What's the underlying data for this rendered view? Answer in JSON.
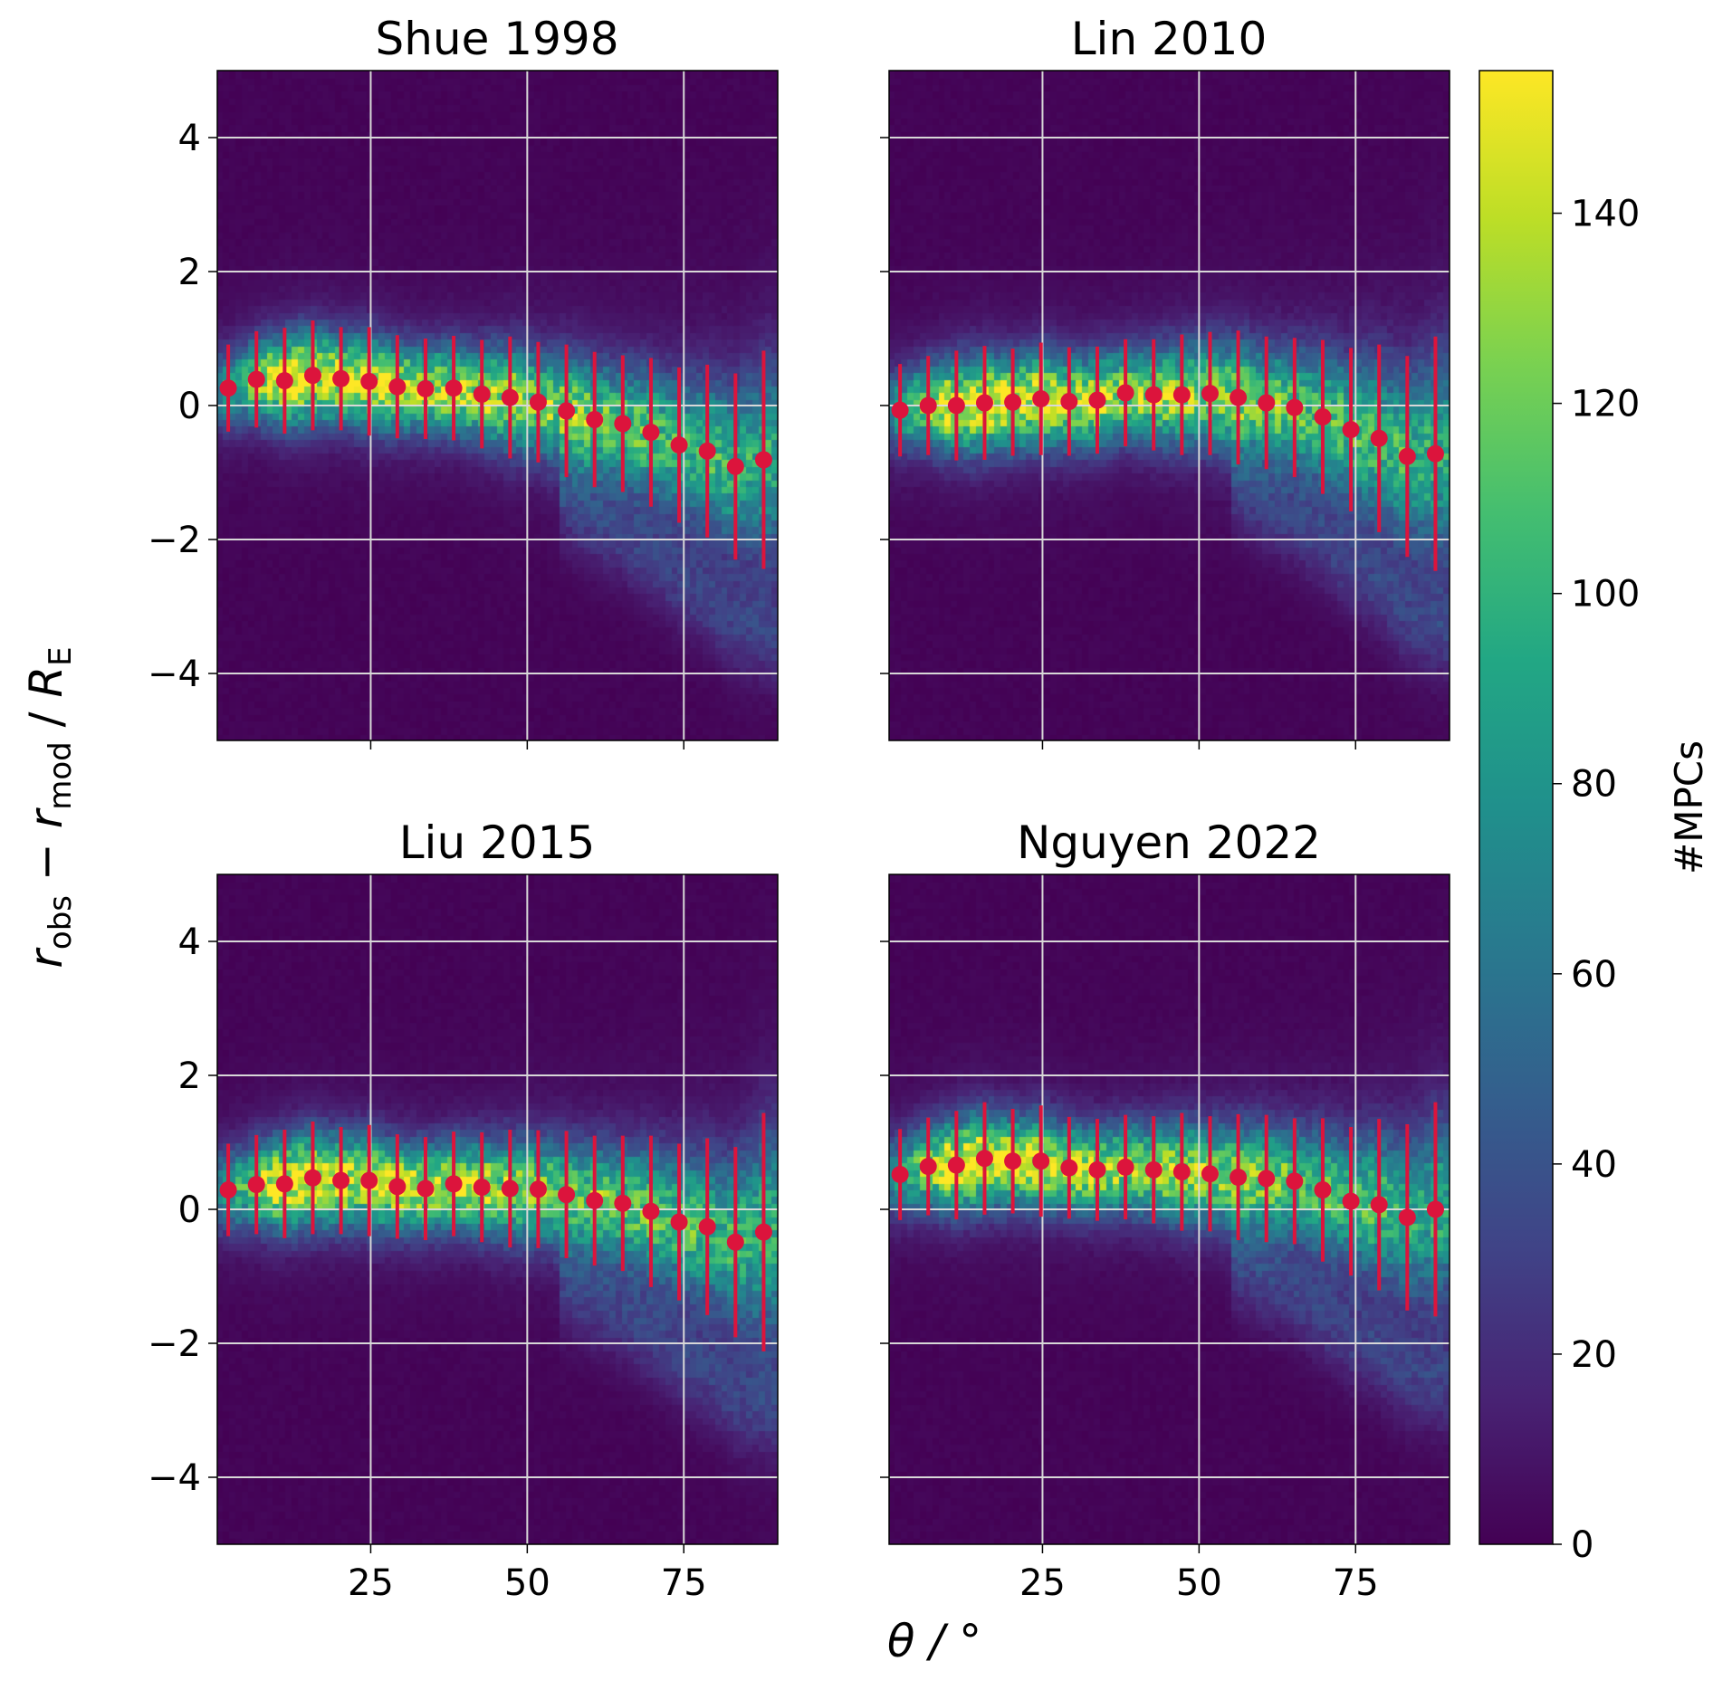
{
  "chart_data": {
    "type": "heatmap",
    "overlay_type": "scatter-errorbar",
    "ylabel": "r_obs − r_mod / R_E",
    "ylabel_parts": {
      "r1": "r",
      "sub1": "obs",
      "minus": " − ",
      "r2": "r",
      "sub2": "mod",
      "slash": " / ",
      "R": "R",
      "subR": "E"
    },
    "xlabel": "θ / °",
    "xlim": [
      0.5,
      90
    ],
    "ylim": [
      -5,
      5
    ],
    "xticks": [
      "25",
      "50",
      "75"
    ],
    "xtick_values": [
      25,
      50,
      75
    ],
    "yticks": [
      "−4",
      "−2",
      "0",
      "2",
      "4"
    ],
    "ytick_values": [
      -4,
      -2,
      0,
      2,
      4
    ],
    "grid": true,
    "marker_color": "#dc143c",
    "colormap": "viridis",
    "colorbar": {
      "label": "#MPCs",
      "range": [
        0,
        155
      ],
      "ticks": [
        "0",
        "20",
        "40",
        "60",
        "80",
        "100",
        "120",
        "140"
      ],
      "tick_values": [
        0,
        20,
        40,
        60,
        80,
        100,
        120,
        140
      ]
    },
    "x": [
      2.25,
      6.75,
      11.25,
      15.75,
      20.25,
      24.75,
      29.25,
      33.75,
      38.25,
      42.75,
      47.25,
      51.75,
      56.25,
      60.75,
      65.25,
      69.75,
      74.25,
      78.75,
      83.25,
      87.75
    ],
    "panels": [
      {
        "title": "Shue 1998",
        "y": [
          0.26,
          0.39,
          0.37,
          0.45,
          0.4,
          0.36,
          0.28,
          0.25,
          0.26,
          0.17,
          0.12,
          0.05,
          -0.08,
          -0.21,
          -0.27,
          -0.4,
          -0.59,
          -0.68,
          -0.91,
          -0.81
        ],
        "yerr": [
          0.65,
          0.72,
          0.79,
          0.82,
          0.77,
          0.81,
          0.77,
          0.75,
          0.78,
          0.81,
          0.91,
          0.9,
          0.99,
          1.01,
          1.02,
          1.11,
          1.16,
          1.29,
          1.39,
          1.63
        ]
      },
      {
        "title": "Lin 2010",
        "y": [
          -0.07,
          0.0,
          0.0,
          0.04,
          0.05,
          0.1,
          0.06,
          0.08,
          0.19,
          0.16,
          0.16,
          0.18,
          0.12,
          0.04,
          -0.03,
          -0.17,
          -0.36,
          -0.49,
          -0.76,
          -0.72
        ],
        "yerr": [
          0.69,
          0.74,
          0.82,
          0.85,
          0.8,
          0.84,
          0.81,
          0.8,
          0.8,
          0.83,
          0.9,
          0.92,
          1.0,
          0.99,
          1.04,
          1.15,
          1.22,
          1.4,
          1.5,
          1.75
        ]
      },
      {
        "title": "Liu 2015",
        "y": [
          0.29,
          0.37,
          0.38,
          0.47,
          0.43,
          0.43,
          0.34,
          0.31,
          0.38,
          0.33,
          0.31,
          0.3,
          0.22,
          0.13,
          0.09,
          -0.03,
          -0.19,
          -0.26,
          -0.49,
          -0.34
        ],
        "yerr": [
          0.69,
          0.74,
          0.81,
          0.84,
          0.8,
          0.83,
          0.78,
          0.77,
          0.78,
          0.82,
          0.88,
          0.88,
          0.95,
          0.97,
          1.01,
          1.13,
          1.17,
          1.32,
          1.42,
          1.78
        ]
      },
      {
        "title": "Nguyen 2022",
        "y": [
          0.52,
          0.64,
          0.66,
          0.76,
          0.72,
          0.72,
          0.62,
          0.59,
          0.63,
          0.59,
          0.56,
          0.53,
          0.48,
          0.46,
          0.42,
          0.29,
          0.12,
          0.07,
          -0.12,
          0.0
        ],
        "yerr": [
          0.68,
          0.73,
          0.81,
          0.84,
          0.78,
          0.83,
          0.76,
          0.76,
          0.78,
          0.8,
          0.88,
          0.86,
          0.94,
          0.95,
          0.94,
          1.07,
          1.11,
          1.28,
          1.39,
          1.6
        ]
      }
    ]
  }
}
